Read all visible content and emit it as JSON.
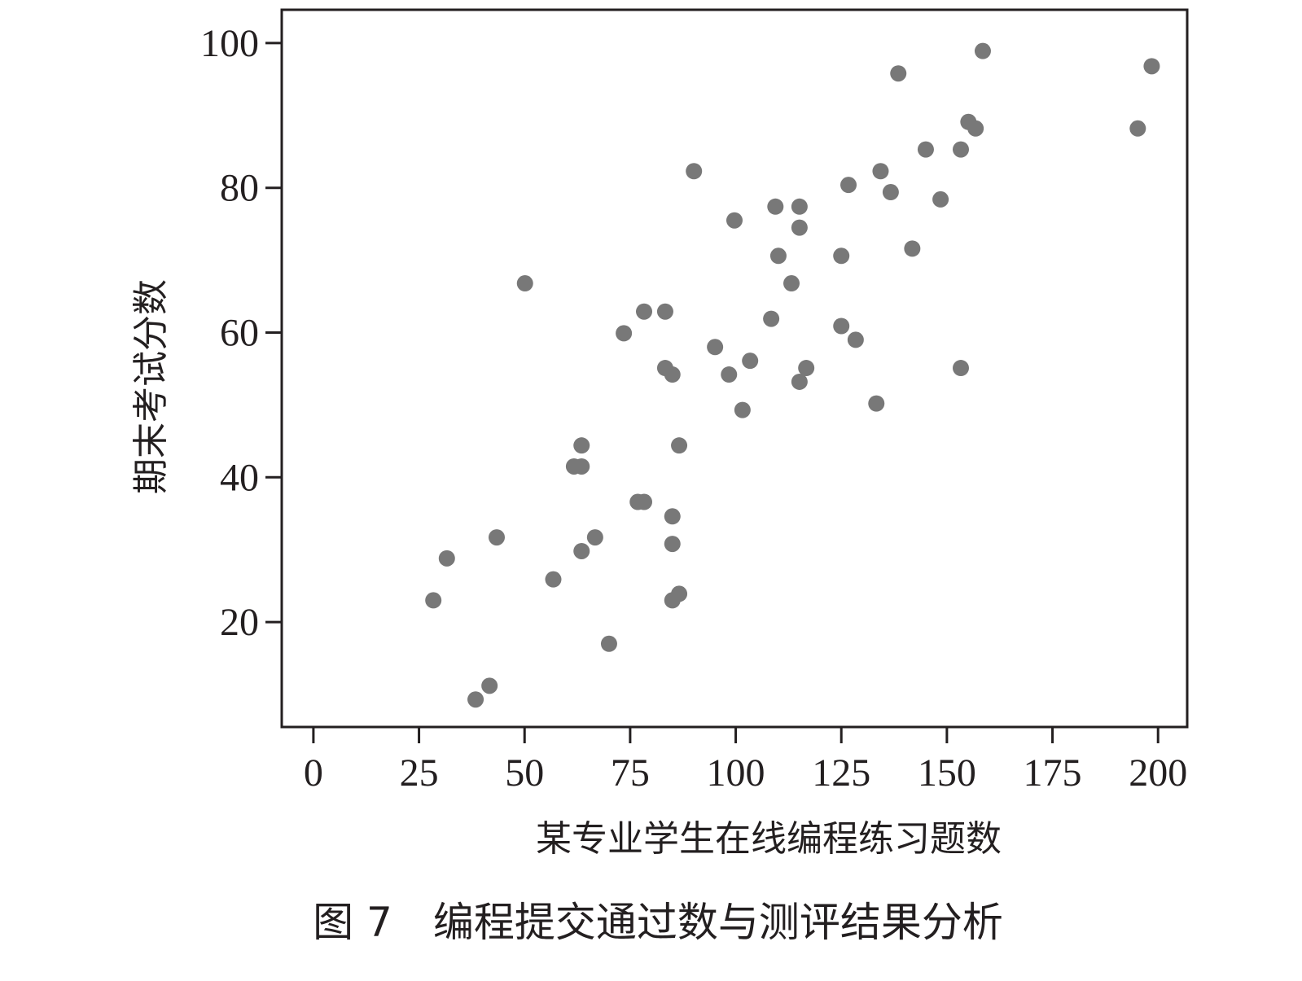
{
  "chart_data": {
    "type": "scatter",
    "caption": "图 7　编程提交通过数与测评结果分析",
    "xlabel": "某专业学生在线编程练习题数",
    "ylabel": "期末考试分数",
    "x": [
      158.5,
      198.5,
      138.5,
      155.1,
      156.8,
      195.2,
      145.0,
      153.3,
      90.1,
      134.3,
      126.7,
      136.7,
      148.5,
      109.4,
      115.1,
      99.7,
      115.1,
      141.8,
      110.1,
      125.0,
      50.1,
      113.2,
      78.3,
      83.3,
      108.4,
      125.0,
      73.5,
      128.4,
      95.1,
      103.4,
      83.3,
      116.7,
      153.3,
      85.0,
      98.4,
      115.1,
      133.3,
      101.6,
      63.5,
      86.6,
      61.7,
      63.5,
      76.8,
      78.3,
      85.0,
      43.4,
      66.7,
      31.6,
      63.5,
      85.0,
      56.8,
      28.4,
      86.6,
      85.0,
      70.0,
      41.7,
      38.4
    ],
    "y": [
      98.9,
      96.8,
      95.8,
      89.1,
      88.2,
      88.2,
      85.3,
      85.3,
      82.3,
      82.3,
      80.4,
      79.4,
      78.4,
      77.4,
      77.4,
      75.5,
      74.5,
      71.6,
      70.6,
      70.6,
      66.8,
      66.8,
      62.9,
      62.9,
      61.9,
      60.9,
      59.9,
      59.0,
      58.0,
      56.1,
      55.1,
      55.1,
      55.1,
      54.2,
      54.2,
      53.2,
      50.2,
      49.3,
      44.4,
      44.4,
      41.5,
      41.5,
      36.6,
      36.6,
      34.6,
      31.7,
      31.7,
      28.8,
      29.8,
      30.8,
      25.9,
      23.0,
      23.9,
      23.0,
      17.0,
      11.2,
      9.3
    ],
    "color": "#787878",
    "xlim": [
      -7.5,
      206.9
    ],
    "ylim": [
      5.5,
      104.6
    ],
    "xticks": [
      0,
      25,
      50,
      75,
      100,
      125,
      150,
      175,
      200
    ],
    "yticks": [
      20,
      40,
      60,
      80,
      100
    ]
  }
}
